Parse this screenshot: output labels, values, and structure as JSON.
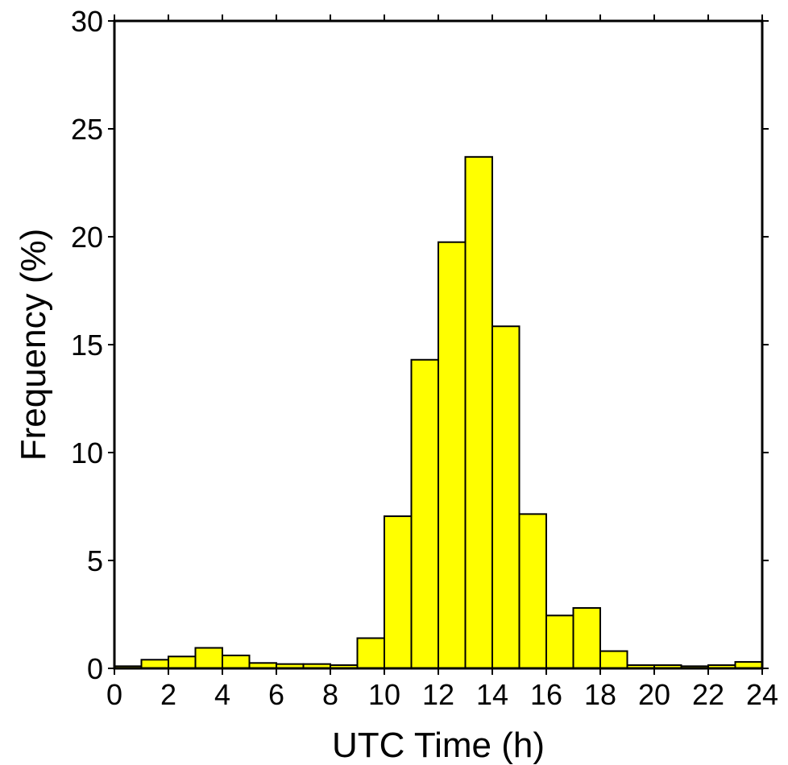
{
  "chart_data": {
    "type": "bar",
    "title": "",
    "xlabel": "UTC Time (h)",
    "ylabel": "Frequency (%)",
    "xlim": [
      0,
      24
    ],
    "ylim": [
      0,
      30
    ],
    "x_ticks": [
      0,
      2,
      4,
      6,
      8,
      10,
      12,
      14,
      16,
      18,
      20,
      22,
      24
    ],
    "y_ticks": [
      0,
      5,
      10,
      15,
      20,
      25,
      30
    ],
    "bin_width": 1,
    "bin_starts": [
      0,
      1,
      2,
      3,
      4,
      5,
      6,
      7,
      8,
      9,
      10,
      11,
      12,
      13,
      14,
      15,
      16,
      17,
      18,
      19,
      20,
      21,
      22,
      23
    ],
    "values": [
      0.1,
      0.4,
      0.55,
      0.95,
      0.6,
      0.25,
      0.2,
      0.2,
      0.15,
      1.4,
      7.05,
      14.3,
      19.75,
      23.7,
      15.85,
      7.15,
      2.45,
      2.8,
      0.8,
      0.15,
      0.15,
      0.1,
      0.15,
      0.3
    ],
    "bar_color": "#ffff00",
    "edge_color": "#000000",
    "grid": false,
    "legend": "none"
  }
}
